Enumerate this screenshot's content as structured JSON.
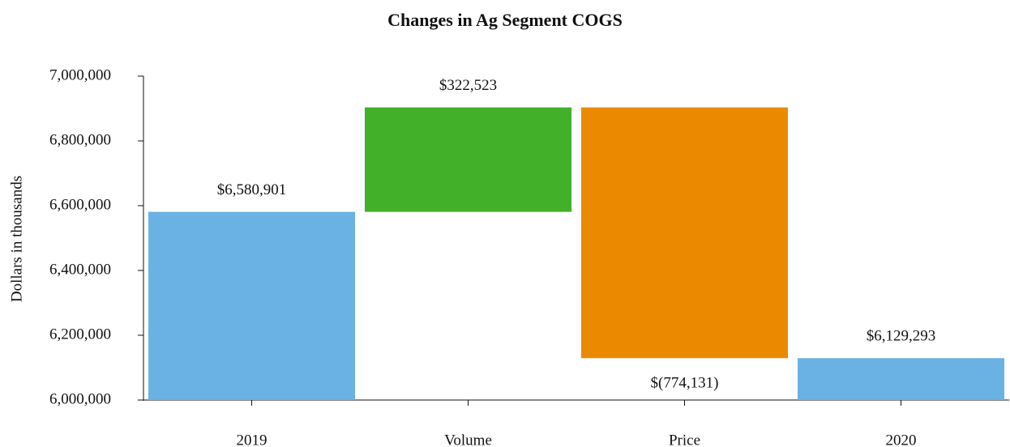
{
  "chart_data": {
    "type": "waterfall",
    "title": "Changes in Ag Segment COGS",
    "y_label": "Dollars in thousands",
    "categories": [
      "2019",
      "Volume",
      "Price",
      "2020"
    ],
    "values": [
      6580901,
      322523,
      -774131,
      6129293
    ],
    "value_labels": [
      "$6,580,901",
      "$322,523",
      "$(774,131)",
      "$6,129,293"
    ],
    "colors": [
      "#6ab1e4",
      "#43b02a",
      "#eb8a00",
      "#6ab1e4"
    ],
    "ylim": [
      6000000,
      7000000
    ],
    "yticks": [
      {
        "value": 6000000,
        "label": "6,000,000"
      },
      {
        "value": 6200000,
        "label": "6,200,000"
      },
      {
        "value": 6400000,
        "label": "6,400,000"
      },
      {
        "value": 6600000,
        "label": "6,600,000"
      },
      {
        "value": 6800000,
        "label": "6,800,000"
      },
      {
        "value": 7000000,
        "label": "7,000,000"
      }
    ],
    "grid": false
  }
}
